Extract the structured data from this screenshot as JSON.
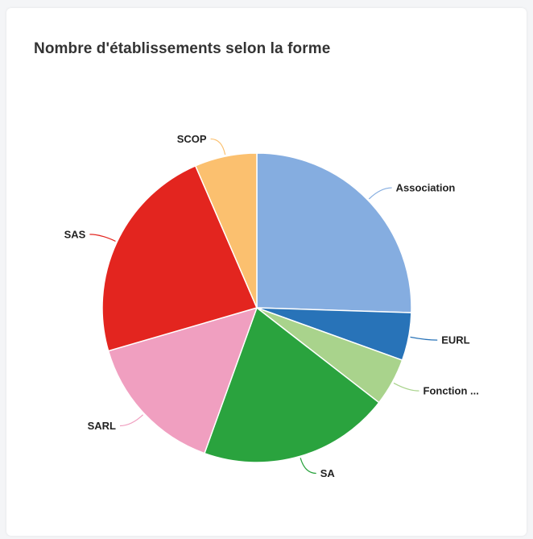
{
  "card": {
    "title": "Nombre d'établissements selon la forme"
  },
  "chart_data": {
    "type": "pie",
    "title": "Nombre d'établissements selon la forme",
    "slices": [
      {
        "label": "Association",
        "value": 25.5,
        "color": "#85ade0"
      },
      {
        "label": "EURL",
        "value": 5.0,
        "color": "#2873b8"
      },
      {
        "label": "Fonction ...",
        "value": 5.0,
        "color": "#a9d38c"
      },
      {
        "label": "SA",
        "value": 20.0,
        "color": "#2aa33e"
      },
      {
        "label": "SARL",
        "value": 15.0,
        "color": "#f09fc0"
      },
      {
        "label": "SAS",
        "value": 23.0,
        "color": "#e3251f"
      },
      {
        "label": "SCOP",
        "value": 6.5,
        "color": "#fbc06f"
      }
    ],
    "start_angle_deg": 0,
    "direction": "clockwise",
    "legend": "none"
  }
}
